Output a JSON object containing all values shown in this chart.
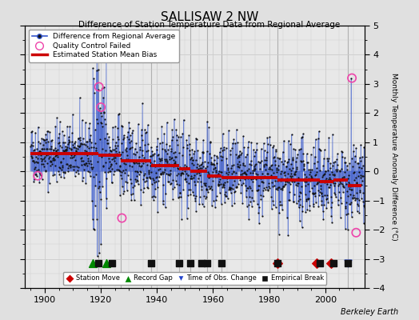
{
  "title": "SALLISAW 2 NW",
  "subtitle": "Difference of Station Temperature Data from Regional Average",
  "ylabel": "Monthly Temperature Anomaly Difference (°C)",
  "xlim": [
    1893,
    2014
  ],
  "ylim": [
    -4,
    5
  ],
  "yticks": [
    -4,
    -3,
    -2,
    -1,
    0,
    1,
    2,
    3,
    4,
    5
  ],
  "xticks": [
    1900,
    1920,
    1940,
    1960,
    1980,
    2000
  ],
  "bg_color": "#e0e0e0",
  "plot_bg_color": "#e8e8e8",
  "line_color": "#3355cc",
  "dot_color": "#111111",
  "bias_color": "#cc0000",
  "station_move_color": "#cc0000",
  "record_gap_color": "#008800",
  "obs_change_color": "#2244cc",
  "empirical_break_color": "#111111",
  "seed": 42,
  "start_year": 1895,
  "end_year": 2013,
  "bias_segments": [
    {
      "start": 1895,
      "end": 1919,
      "value": 0.6
    },
    {
      "start": 1919,
      "end": 1927,
      "value": 0.55
    },
    {
      "start": 1927,
      "end": 1938,
      "value": 0.35
    },
    {
      "start": 1938,
      "end": 1948,
      "value": 0.2
    },
    {
      "start": 1948,
      "end": 1952,
      "value": 0.1
    },
    {
      "start": 1952,
      "end": 1958,
      "value": 0.0
    },
    {
      "start": 1958,
      "end": 1963,
      "value": -0.15
    },
    {
      "start": 1963,
      "end": 1983,
      "value": -0.2
    },
    {
      "start": 1983,
      "end": 1998,
      "value": -0.3
    },
    {
      "start": 1998,
      "end": 2003,
      "value": -0.35
    },
    {
      "start": 2003,
      "end": 2008,
      "value": -0.3
    },
    {
      "start": 2008,
      "end": 2013,
      "value": -0.5
    }
  ],
  "station_moves": [
    1983,
    1997,
    2002
  ],
  "record_gaps": [
    1917,
    1922
  ],
  "obs_changes": [
    2008
  ],
  "empirical_breaks": [
    1919,
    1924,
    1938,
    1948,
    1952,
    1956,
    1958,
    1963,
    1983,
    1998,
    2003,
    2008
  ],
  "vertical_lines": [
    1919,
    1927,
    1938,
    1948,
    1952,
    1958,
    1963,
    1983,
    2008
  ],
  "qc_failed": [
    {
      "year": 1897.5,
      "val": -0.15
    },
    {
      "year": 1919.3,
      "val": 2.9
    },
    {
      "year": 1920.0,
      "val": 2.2
    },
    {
      "year": 1927.5,
      "val": -1.6
    },
    {
      "year": 2009.5,
      "val": 3.2
    },
    {
      "year": 2011.0,
      "val": -2.1
    }
  ],
  "footer": "Berkeley Earth"
}
